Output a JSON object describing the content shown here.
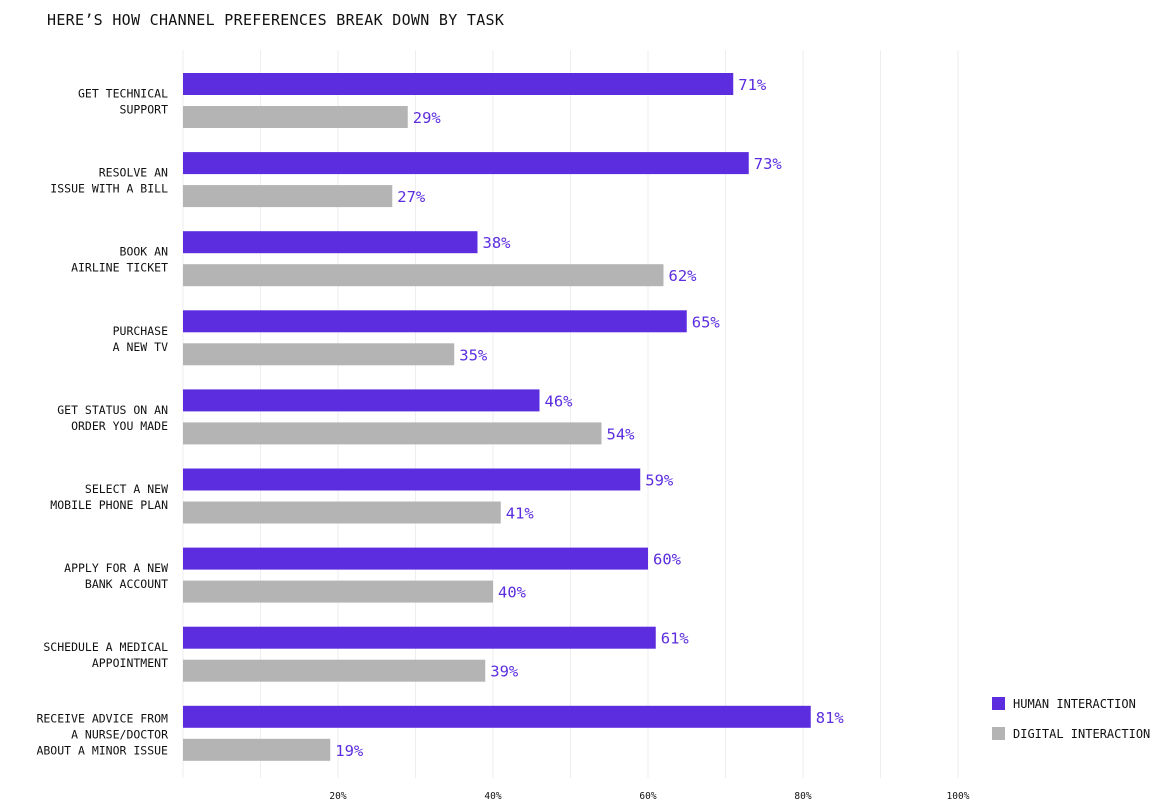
{
  "chart_data": {
    "type": "bar",
    "orientation": "horizontal",
    "title": "HERE’S HOW CHANNEL PREFERENCES BREAK DOWN BY TASK",
    "categories": [
      [
        "GET TECHNICAL",
        "SUPPORT"
      ],
      [
        "RESOLVE AN",
        "ISSUE WITH A BILL"
      ],
      [
        "BOOK AN",
        "AIRLINE TICKET"
      ],
      [
        "PURCHASE",
        "A NEW TV"
      ],
      [
        "GET STATUS ON AN",
        "ORDER YOU MADE"
      ],
      [
        "SELECT A NEW",
        "MOBILE PHONE PLAN"
      ],
      [
        "APPLY FOR A NEW",
        "BANK ACCOUNT"
      ],
      [
        "SCHEDULE A MEDICAL",
        "APPOINTMENT"
      ],
      [
        "RECEIVE ADVICE FROM",
        "A NURSE/DOCTOR",
        "ABOUT A MINOR ISSUE"
      ]
    ],
    "series": [
      {
        "name": "HUMAN INTERACTION",
        "color": "#5b2ddf",
        "values": [
          71,
          73,
          38,
          65,
          46,
          59,
          60,
          61,
          81
        ]
      },
      {
        "name": "DIGITAL INTERACTION",
        "color": "#b4b4b4",
        "values": [
          29,
          27,
          62,
          35,
          54,
          41,
          40,
          39,
          19
        ]
      }
    ],
    "value_label_color": "#5b2ddf",
    "xlim": [
      0,
      100
    ],
    "xticks": [
      20,
      40,
      60,
      80,
      100
    ],
    "xtick_labels": [
      "20%",
      "40%",
      "60%",
      "80%",
      "100%"
    ],
    "grid": true,
    "legend_position": "bottom-right"
  }
}
